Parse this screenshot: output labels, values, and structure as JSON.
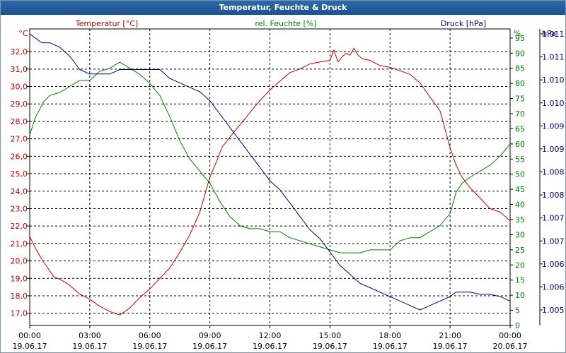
{
  "window": {
    "title": "Temperatur, Feuchte & Druck"
  },
  "chart_data": {
    "type": "line",
    "title": "Temperatur, Feuchte & Druck",
    "grid": true,
    "x_ticks": [
      {
        "time": "00:00",
        "date": "19.06.17"
      },
      {
        "time": "03:00",
        "date": "19.06.17"
      },
      {
        "time": "06:00",
        "date": "19.06.17"
      },
      {
        "time": "09:00",
        "date": "19.06.17"
      },
      {
        "time": "12:00",
        "date": "19.06.17"
      },
      {
        "time": "15:00",
        "date": "19.06.17"
      },
      {
        "time": "18:00",
        "date": "19.06.17"
      },
      {
        "time": "21:00",
        "date": "19.06.17"
      },
      {
        "time": "00:00",
        "date": "20.06.17"
      }
    ],
    "x_range_hours": [
      0,
      24
    ],
    "axes": {
      "temperature": {
        "label": "Temperatur [°C]",
        "unit": "°C",
        "color": "#c00000",
        "range": [
          16.3,
          33.3
        ],
        "ticks": [
          "17,0",
          "18,0",
          "19,0",
          "20,0",
          "21,0",
          "22,0",
          "23,0",
          "24,0",
          "25,0",
          "26,0",
          "27,0",
          "28,0",
          "29,0",
          "30,0",
          "31,0",
          "32,0"
        ]
      },
      "humidity": {
        "label": "rel. Feuchte [%]",
        "unit": "%",
        "color": "#008000",
        "range": [
          0,
          98
        ],
        "ticks": [
          "0",
          "5",
          "10",
          "15",
          "20",
          "25",
          "30",
          "35",
          "40",
          "45",
          "50",
          "55",
          "60",
          "65",
          "70",
          "75",
          "80",
          "85",
          "90",
          "95"
        ]
      },
      "pressure": {
        "label": "Druck [hPa]",
        "unit": "hPa",
        "color": "#000080",
        "ticks": [
          "1.005",
          "1.006",
          "1.006",
          "1.007",
          "1.007",
          "1.008",
          "1.008",
          "1.009",
          "1.009",
          "1.010",
          "1.010",
          "1.011",
          "1.011"
        ]
      }
    },
    "series": [
      {
        "name": "Temperatur [°C]",
        "axis": "temperature",
        "color": "#c00000",
        "x": [
          0,
          0.3,
          0.6,
          0.9,
          1.2,
          1.6,
          2.0,
          2.5,
          3.0,
          3.5,
          4.0,
          4.5,
          5.0,
          5.5,
          6.0,
          6.5,
          7.0,
          7.5,
          8.0,
          8.5,
          9.0,
          9.3,
          9.6,
          10.0,
          10.5,
          11.0,
          11.5,
          12.0,
          12.5,
          13.0,
          13.5,
          14.0,
          14.5,
          15.0,
          15.2,
          15.4,
          15.6,
          15.8,
          16.0,
          16.2,
          16.4,
          16.6,
          17.0,
          17.5,
          18.0,
          18.5,
          19.0,
          19.5,
          20.0,
          20.5,
          21.0,
          21.3,
          21.6,
          22.0,
          22.5,
          23.0,
          23.5,
          24.0
        ],
        "values": [
          21.4,
          20.7,
          20.1,
          19.6,
          19.1,
          18.9,
          18.6,
          18.1,
          17.8,
          17.4,
          17.1,
          16.9,
          17.3,
          17.9,
          18.4,
          19.0,
          19.6,
          20.5,
          21.5,
          22.8,
          24.8,
          25.6,
          26.5,
          27.1,
          27.8,
          28.5,
          29.2,
          29.8,
          30.3,
          30.8,
          31.0,
          31.3,
          31.4,
          31.5,
          32.1,
          31.4,
          31.7,
          31.9,
          31.8,
          32.2,
          31.8,
          31.6,
          31.5,
          31.2,
          31.1,
          30.9,
          30.7,
          30.2,
          29.4,
          28.6,
          26.5,
          25.5,
          24.8,
          24.2,
          23.6,
          23.0,
          22.8,
          22.3
        ]
      },
      {
        "name": "rel. Feuchte [%]",
        "axis": "humidity",
        "color": "#008000",
        "x": [
          0,
          0.3,
          0.7,
          1.0,
          1.5,
          2.0,
          2.5,
          3.0,
          3.5,
          4.0,
          4.5,
          5.0,
          5.5,
          6.0,
          6.5,
          7.0,
          7.5,
          8.0,
          8.5,
          9.0,
          9.5,
          10.0,
          10.5,
          11.0,
          11.5,
          12.0,
          12.5,
          13.0,
          13.5,
          14.0,
          14.5,
          15.0,
          15.5,
          16.0,
          16.5,
          17.0,
          17.5,
          18.0,
          18.5,
          19.0,
          19.5,
          20.0,
          20.5,
          21.0,
          21.3,
          21.6,
          22.0,
          22.5,
          23.0,
          23.5,
          24.0
        ],
        "values": [
          63,
          69,
          74,
          76,
          77,
          79,
          81,
          81,
          84,
          85,
          87,
          85,
          83,
          80,
          76,
          69,
          61,
          55,
          51,
          47,
          41,
          36,
          33,
          32,
          32,
          31,
          31,
          29,
          28,
          27,
          26,
          25,
          24,
          24,
          24,
          25,
          25,
          25,
          28,
          29,
          29,
          31,
          33,
          37,
          44,
          47,
          49,
          51,
          53,
          56,
          60
        ]
      },
      {
        "name": "Druck [hPa]",
        "axis": "pressure",
        "color": "#000080",
        "x": [
          0,
          0.3,
          0.6,
          1.0,
          1.5,
          2.0,
          2.5,
          3.0,
          3.5,
          4.0,
          4.5,
          5.0,
          5.5,
          6.0,
          6.5,
          7.0,
          7.5,
          8.0,
          8.5,
          9.0,
          9.5,
          10.0,
          10.5,
          11.0,
          11.5,
          12.0,
          12.5,
          13.0,
          13.5,
          14.0,
          14.5,
          15.0,
          15.5,
          16.0,
          16.5,
          17.0,
          17.5,
          18.0,
          18.5,
          19.0,
          19.5,
          20.0,
          20.5,
          21.0,
          21.3,
          21.6,
          22.0,
          22.5,
          23.0,
          23.5,
          24.0
        ],
        "values": [
          1.0113,
          1.0112,
          1.0111,
          1.0111,
          1.011,
          1.0108,
          1.0105,
          1.0104,
          1.0104,
          1.0104,
          1.0105,
          1.0105,
          1.0105,
          1.0105,
          1.0105,
          1.0103,
          1.0102,
          1.0101,
          1.01,
          1.0098,
          1.0095,
          1.0092,
          1.0089,
          1.0086,
          1.0083,
          1.008,
          1.0078,
          1.0075,
          1.0072,
          1.0069,
          1.0067,
          1.0064,
          1.0061,
          1.0059,
          1.0057,
          1.0056,
          1.0055,
          1.0054,
          1.0053,
          1.0052,
          1.0051,
          1.0052,
          1.0053,
          1.0054,
          1.0055,
          1.0055,
          1.0055,
          1.00545,
          1.00545,
          1.0054,
          1.0053
        ]
      }
    ]
  }
}
